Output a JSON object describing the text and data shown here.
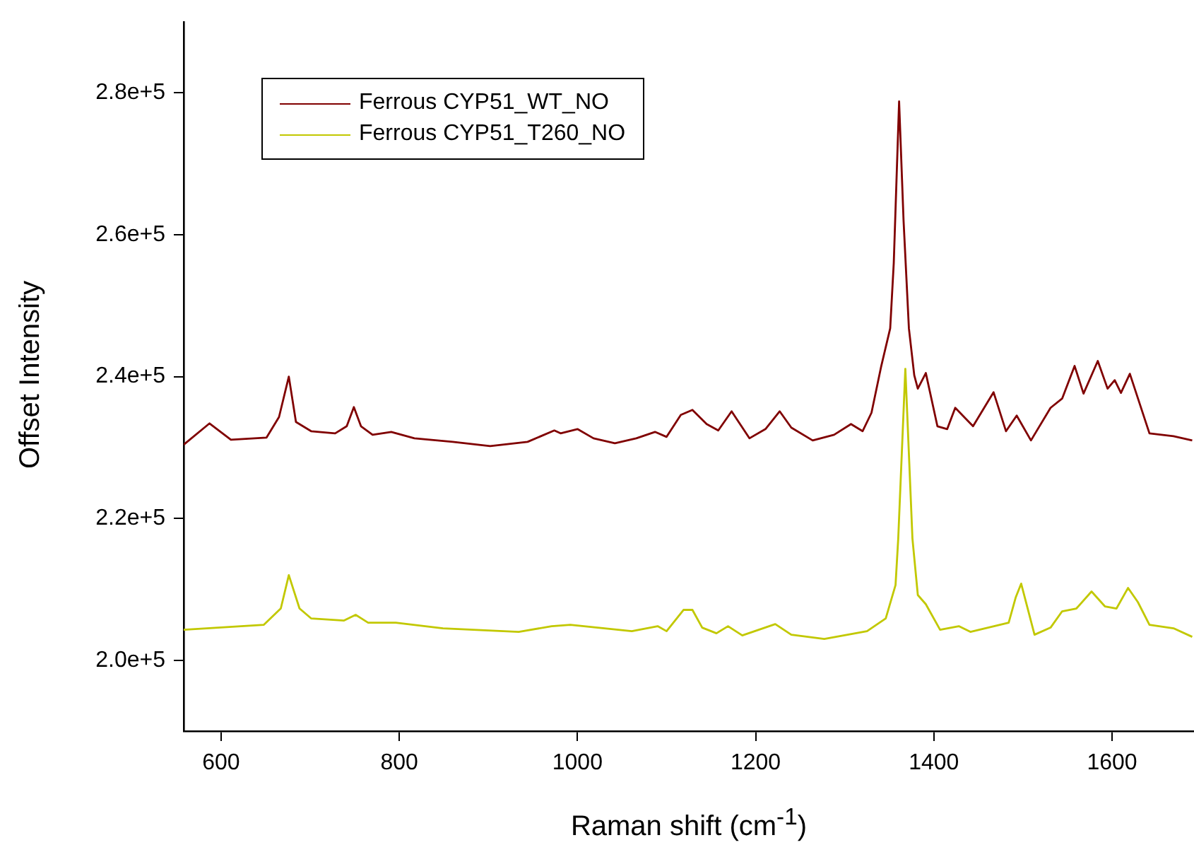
{
  "chart_data": {
    "type": "line",
    "xlabel": "Raman shift (cm$^{-1}$)",
    "ylabel": "Offset Intensity",
    "xlim": [
      558,
      1692
    ],
    "xticks": [
      600,
      800,
      1000,
      1200,
      1400,
      1600
    ],
    "ylim": [
      190000,
      290000
    ],
    "yticks": [
      {
        "value": 200000,
        "label": "2.0e+5"
      },
      {
        "value": 220000,
        "label": "2.2e+5"
      },
      {
        "value": 240000,
        "label": "2.4e+5"
      },
      {
        "value": 260000,
        "label": "2.6e+5"
      },
      {
        "value": 280000,
        "label": "2.8e+5"
      }
    ],
    "grid": false,
    "legend": "top left",
    "series": [
      {
        "name": "Ferrous CYP51_WT_NO",
        "color": "#800000",
        "x": [
          558,
          587,
          611,
          651,
          665,
          676,
          684,
          701,
          728,
          741,
          749,
          757,
          770,
          791,
          817,
          860,
          902,
          944,
          974,
          981,
          1000,
          1018,
          1042,
          1066,
          1087,
          1100,
          1116,
          1129,
          1145,
          1158,
          1173,
          1193,
          1211,
          1227,
          1240,
          1264,
          1288,
          1307,
          1320,
          1330,
          1341,
          1351,
          1355,
          1361,
          1366,
          1372,
          1378,
          1382,
          1391,
          1404,
          1415,
          1424,
          1444,
          1467,
          1481,
          1493,
          1509,
          1531,
          1544,
          1558,
          1568,
          1584,
          1595,
          1603,
          1610,
          1620,
          1642,
          1669,
          1690
        ],
        "values": [
          230400,
          233400,
          231100,
          231400,
          234300,
          240000,
          233600,
          232300,
          232000,
          233000,
          235700,
          233000,
          231800,
          232200,
          231300,
          230800,
          230200,
          230800,
          232400,
          232000,
          232600,
          231300,
          230600,
          231300,
          232200,
          231500,
          234600,
          235300,
          233300,
          232400,
          235100,
          231300,
          232600,
          235100,
          232800,
          231000,
          231800,
          233300,
          232300,
          234900,
          241500,
          246800,
          256000,
          278800,
          262000,
          246800,
          240200,
          238300,
          240500,
          233000,
          232600,
          235600,
          233000,
          237800,
          232300,
          234500,
          231000,
          235600,
          236900,
          241500,
          237600,
          242200,
          238300,
          239500,
          237700,
          240400,
          232000,
          231600,
          231000
        ]
      },
      {
        "name": "Ferrous CYP51_T260_NO",
        "color": "#c2c800",
        "x": [
          558,
          648,
          667,
          676,
          688,
          701,
          738,
          751,
          765,
          796,
          849,
          934,
          971,
          992,
          1061,
          1090,
          1100,
          1119,
          1129,
          1140,
          1156,
          1169,
          1185,
          1222,
          1240,
          1277,
          1325,
          1346,
          1357,
          1360,
          1368,
          1376,
          1382,
          1391,
          1407,
          1428,
          1441,
          1484,
          1492,
          1498,
          1513,
          1531,
          1544,
          1560,
          1577,
          1592,
          1605,
          1618,
          1629,
          1642,
          1669,
          1690
        ],
        "values": [
          204300,
          205000,
          207300,
          212000,
          207300,
          205900,
          205600,
          206400,
          205300,
          205300,
          204500,
          204000,
          204800,
          205000,
          204100,
          204800,
          204100,
          207100,
          207100,
          204600,
          203800,
          204800,
          203500,
          205100,
          203600,
          203000,
          204100,
          205900,
          210600,
          217100,
          241100,
          217100,
          209200,
          207900,
          204300,
          204800,
          204000,
          205300,
          208900,
          210800,
          203600,
          204600,
          206900,
          207300,
          209700,
          207600,
          207300,
          210200,
          208200,
          205000,
          204500,
          203300
        ]
      }
    ]
  }
}
